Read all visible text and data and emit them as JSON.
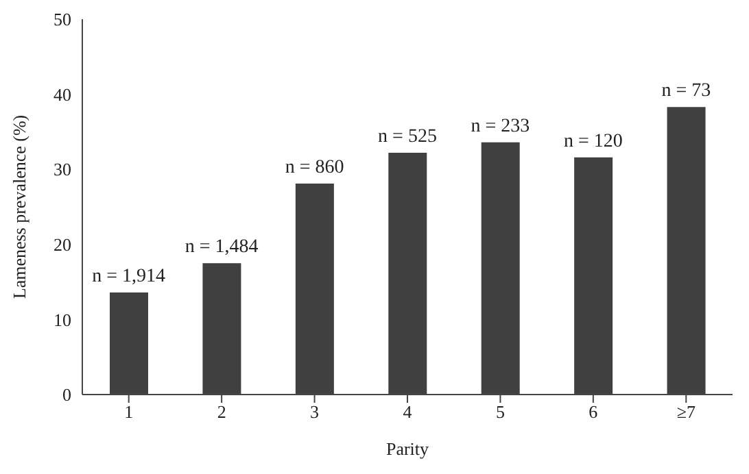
{
  "chart_data": {
    "type": "bar",
    "xlabel": "Parity",
    "ylabel": "Lameness prevalence (%)",
    "categories": [
      "1",
      "2",
      "3",
      "4",
      "5",
      "6",
      "≥7"
    ],
    "values": [
      13.6,
      17.5,
      28.1,
      32.2,
      33.6,
      31.6,
      38.3
    ],
    "annotations": [
      {
        "text": "n = 1,914",
        "x": "1",
        "y": 13.6
      },
      {
        "text": "n = 1,484",
        "x": "2",
        "y": 17.5
      },
      {
        "text": "n = 860",
        "x": "3",
        "y": 28.1
      },
      {
        "text": "n = 525",
        "x": "4",
        "y": 32.2
      },
      {
        "text": "n = 233",
        "x": "5",
        "y": 33.6
      },
      {
        "text": "n = 120",
        "x": "6",
        "y": 31.6
      },
      {
        "text": "n = 73",
        "x": "≥7",
        "y": 38.3
      }
    ],
    "color": "#404040",
    "ylim": [
      0,
      50
    ],
    "yticks": [
      0,
      10,
      20,
      30,
      40,
      50
    ],
    "grid": false
  }
}
